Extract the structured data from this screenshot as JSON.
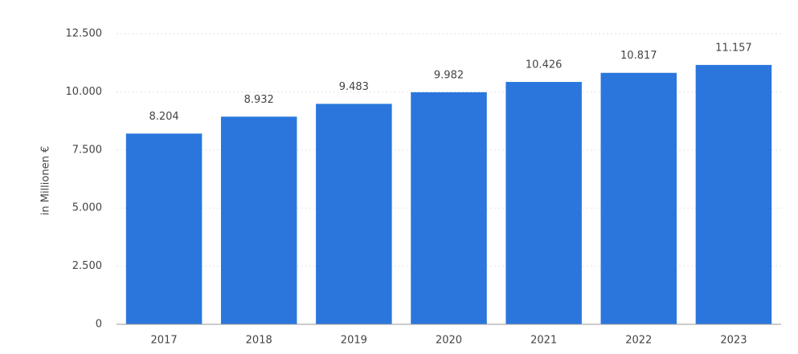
{
  "chart_data": {
    "type": "bar",
    "y_label": "in Millionen €",
    "categories": [
      "2017",
      "2018",
      "2019",
      "2020",
      "2021",
      "2022",
      "2023"
    ],
    "values": [
      8204,
      8932,
      9483,
      9982,
      10426,
      10817,
      11157
    ],
    "value_labels": [
      "8.204",
      "8.932",
      "9.483",
      "9.982",
      "10.426",
      "10.817",
      "11.157"
    ],
    "color": "#2a76dd",
    "ylim": [
      0,
      12500
    ],
    "yticks": [
      0,
      {
        "value": 2500,
        "label": "2.500"
      },
      {
        "value": 5000,
        "label": "5.000"
      },
      {
        "value": 7500,
        "label": "7.500"
      },
      {
        "value": 10000,
        "label": "10.000"
      },
      {
        "value": 12500,
        "label": "12.500"
      }
    ],
    "grid": true
  }
}
